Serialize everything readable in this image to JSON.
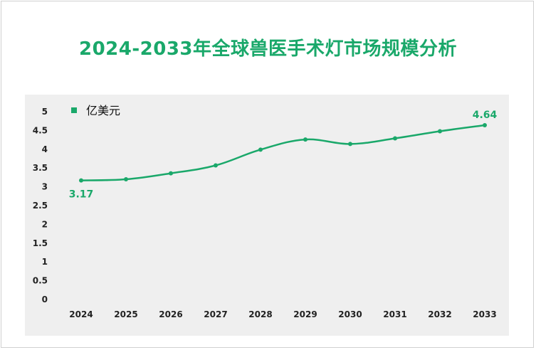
{
  "chart_data": {
    "type": "line",
    "title": "2024-2033年全球兽医手术灯市场规模分析",
    "legend": "亿美元",
    "x": [
      "2024",
      "2025",
      "2026",
      "2027",
      "2028",
      "2029",
      "2030",
      "2031",
      "2032",
      "2033"
    ],
    "series": [
      {
        "name": "亿美元",
        "values": [
          3.17,
          3.2,
          3.36,
          3.57,
          3.99,
          4.26,
          4.14,
          4.29,
          4.48,
          4.64
        ]
      }
    ],
    "y_ticks": [
      "0",
      "0.5",
      "1",
      "1.5",
      "2",
      "2.5",
      "3",
      "3.5",
      "4",
      "4.5",
      "5"
    ],
    "ylim": [
      0,
      5
    ],
    "data_labels": [
      {
        "index": 0,
        "text": "3.17"
      },
      {
        "index": 9,
        "text": "4.64"
      }
    ],
    "line_color": "#1aa86a",
    "grid": false,
    "legend_position": "top-left"
  }
}
